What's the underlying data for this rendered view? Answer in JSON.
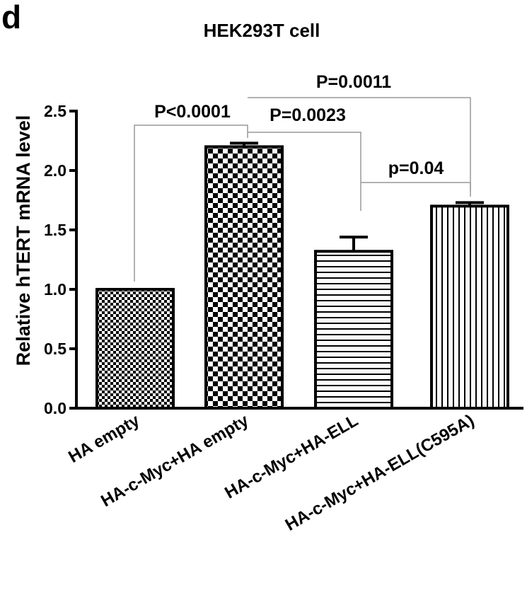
{
  "chart_data": {
    "type": "bar",
    "panel_label": "d",
    "title": "HEK293T cell",
    "y_label": "Relative hTERT  mRNA level",
    "categories": [
      "HA empty",
      "HA-c-Myc+HA empty",
      "HA-c-Myc+HA-ELL",
      "HA-c-Myc+HA-ELL(C595A)"
    ],
    "values": [
      1.0,
      2.2,
      1.32,
      1.7
    ],
    "errors": [
      0,
      0.03,
      0.12,
      0.03
    ],
    "color": "#000000",
    "ylim": [
      0,
      2.5
    ],
    "yticks": [
      {
        "value": 0,
        "label": "0.0"
      },
      {
        "value": 0.5,
        "label": "0.5"
      },
      {
        "value": 1,
        "label": "1.0"
      },
      {
        "value": 1.5,
        "label": "1.5"
      },
      {
        "value": 2,
        "label": "2.0"
      },
      {
        "value": 2.5,
        "label": "2.5"
      }
    ],
    "annotations": [
      "P<0.0001",
      "P=0.0023",
      "P=0.0011",
      "p=0.04"
    ]
  }
}
